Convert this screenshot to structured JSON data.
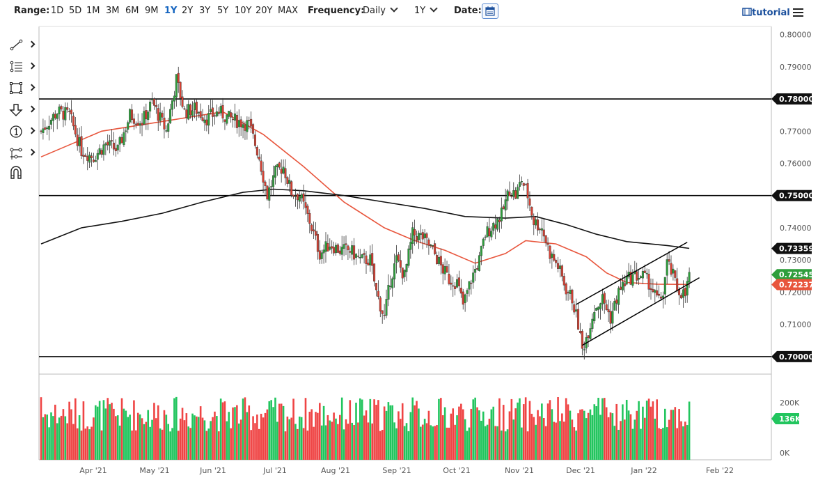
{
  "toolbar": {
    "range_label": "Range:",
    "ranges": [
      "1D",
      "5D",
      "1M",
      "3M",
      "6M",
      "9M",
      "1Y",
      "2Y",
      "3Y",
      "5Y",
      "10Y",
      "20Y",
      "MAX"
    ],
    "active_range": "1Y",
    "frequency_label": "Frequency:",
    "frequency_value": "Daily",
    "period_value": "1Y",
    "date_label": "Date:",
    "tutorial_label": "tutorial"
  },
  "tools": [
    "line-tool-icon",
    "fib-tool-icon",
    "rectangle-tool-icon",
    "arrow-tool-icon",
    "number-marker-icon",
    "measure-tool-icon",
    "magnet-icon"
  ],
  "colors": {
    "up": "#2e9e3c",
    "down": "#d64032",
    "up_volume": "#22c55e",
    "down_volume": "#ef4444",
    "ma_short": "#e8553c",
    "ma_long": "#111111"
  },
  "chart_data": {
    "type": "candlestick",
    "price_axis": {
      "min": 0.695,
      "max": 0.8025,
      "ticks": [
        "0.80000",
        "0.79000",
        "0.78000",
        "0.77000",
        "0.76000",
        "0.75000",
        "0.74000",
        "0.73000",
        "0.72000",
        "0.71000",
        "0.70000"
      ]
    },
    "x_labels": [
      "Apr '21",
      "May '21",
      "Jun '21",
      "Jul '21",
      "Aug '21",
      "Sep '21",
      "Oct '21",
      "Nov '21",
      "Dec '21",
      "Jan '22",
      "Feb '22"
    ],
    "horizontal_lines": [
      0.78,
      0.75,
      0.7
    ],
    "level_labels": [
      {
        "value": 0.78,
        "label": "0.78000",
        "style": "dark"
      },
      {
        "value": 0.75,
        "label": "0.75000",
        "style": "dark"
      },
      {
        "value": 0.7,
        "label": "0.70000",
        "style": "dark"
      },
      {
        "value": 0.73359,
        "label": "0.73359",
        "style": "dark"
      },
      {
        "value": 0.72545,
        "label": "0.72545",
        "style": "green"
      },
      {
        "value": 0.72237,
        "label": "0.72237",
        "style": "red"
      }
    ],
    "close_path": [
      [
        0,
        0.77
      ],
      [
        8,
        0.776
      ],
      [
        14,
        0.775
      ],
      [
        20,
        0.764
      ],
      [
        26,
        0.762
      ],
      [
        32,
        0.766
      ],
      [
        38,
        0.764
      ],
      [
        44,
        0.775
      ],
      [
        50,
        0.773
      ],
      [
        55,
        0.779
      ],
      [
        62,
        0.77
      ],
      [
        67,
        0.786
      ],
      [
        71,
        0.776
      ],
      [
        76,
        0.777
      ],
      [
        82,
        0.774
      ],
      [
        88,
        0.776
      ],
      [
        93,
        0.774
      ],
      [
        98,
        0.773
      ],
      [
        103,
        0.772
      ],
      [
        108,
        0.762
      ],
      [
        112,
        0.75
      ],
      [
        116,
        0.757
      ],
      [
        120,
        0.759
      ],
      [
        124,
        0.751
      ],
      [
        128,
        0.75
      ],
      [
        133,
        0.742
      ],
      [
        138,
        0.732
      ],
      [
        143,
        0.735
      ],
      [
        148,
        0.733
      ],
      [
        153,
        0.733
      ],
      [
        158,
        0.73
      ],
      [
        163,
        0.73
      ],
      [
        166,
        0.72
      ],
      [
        170,
        0.712
      ],
      [
        173,
        0.724
      ],
      [
        176,
        0.73
      ],
      [
        180,
        0.725
      ],
      [
        184,
        0.738
      ],
      [
        189,
        0.737
      ],
      [
        194,
        0.733
      ],
      [
        198,
        0.728
      ],
      [
        202,
        0.724
      ],
      [
        206,
        0.723
      ],
      [
        209,
        0.716
      ],
      [
        213,
        0.724
      ],
      [
        217,
        0.73
      ],
      [
        220,
        0.738
      ],
      [
        224,
        0.741
      ],
      [
        228,
        0.744
      ],
      [
        232,
        0.752
      ],
      [
        235,
        0.75
      ],
      [
        238,
        0.755
      ],
      [
        241,
        0.75
      ],
      [
        244,
        0.742
      ],
      [
        248,
        0.74
      ],
      [
        252,
        0.732
      ],
      [
        256,
        0.728
      ],
      [
        260,
        0.721
      ],
      [
        263,
        0.718
      ],
      [
        266,
        0.71
      ],
      [
        268,
        0.702
      ],
      [
        271,
        0.708
      ],
      [
        274,
        0.715
      ],
      [
        278,
        0.718
      ],
      [
        282,
        0.712
      ],
      [
        286,
        0.72
      ],
      [
        290,
        0.724
      ],
      [
        294,
        0.725
      ],
      [
        298,
        0.725
      ],
      [
        301,
        0.723
      ],
      [
        304,
        0.719
      ],
      [
        306,
        0.717
      ],
      [
        308,
        0.72
      ],
      [
        310,
        0.729
      ],
      [
        313,
        0.725
      ],
      [
        315,
        0.721
      ],
      [
        317,
        0.72
      ],
      [
        319,
        0.719
      ],
      [
        321,
        0.7255
      ]
    ],
    "series": [
      {
        "name": "",
        "type": "line",
        "points": [
          [
            0,
            0.762
          ],
          [
            30,
            0.77
          ],
          [
            60,
            0.773
          ],
          [
            90,
            0.776
          ],
          [
            110,
            0.769
          ],
          [
            130,
            0.759
          ],
          [
            150,
            0.748
          ],
          [
            170,
            0.74
          ],
          [
            185,
            0.736
          ],
          [
            200,
            0.733
          ],
          [
            215,
            0.729
          ],
          [
            230,
            0.732
          ],
          [
            240,
            0.736
          ],
          [
            255,
            0.735
          ],
          [
            270,
            0.731
          ],
          [
            280,
            0.726
          ],
          [
            290,
            0.723
          ],
          [
            305,
            0.7225
          ],
          [
            321,
            0.7224
          ]
        ]
      },
      {
        "name": "",
        "type": "line",
        "points": [
          [
            0,
            0.735
          ],
          [
            20,
            0.74
          ],
          [
            40,
            0.742
          ],
          [
            60,
            0.7445
          ],
          [
            80,
            0.748
          ],
          [
            100,
            0.751
          ],
          [
            115,
            0.752
          ],
          [
            130,
            0.7515
          ],
          [
            150,
            0.75
          ],
          [
            170,
            0.748
          ],
          [
            190,
            0.746
          ],
          [
            210,
            0.7435
          ],
          [
            230,
            0.743
          ],
          [
            245,
            0.7435
          ],
          [
            260,
            0.741
          ],
          [
            275,
            0.738
          ],
          [
            290,
            0.7357
          ],
          [
            310,
            0.7345
          ],
          [
            321,
            0.7336
          ]
        ]
      }
    ],
    "trendlines": [
      {
        "from": [
          265,
          0.7162
        ],
        "to": [
          320,
          0.7355
        ]
      },
      {
        "from": [
          268,
          0.7035
        ],
        "to": [
          326,
          0.7245
        ]
      }
    ],
    "volume": {
      "axis_ticks": [
        "200K",
        "0K"
      ],
      "max": 250000,
      "last_label": "136K"
    },
    "days_span": 365,
    "candles_visible": 322
  }
}
